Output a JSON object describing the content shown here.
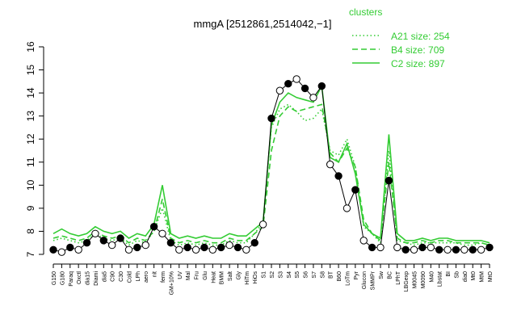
{
  "chart_data": {
    "type": "line",
    "title": "mmgA [2512861,2514042,−1]",
    "xlabel": "",
    "ylabel": "",
    "ylim": [
      7,
      16
    ],
    "yticks": [
      7,
      8,
      9,
      10,
      11,
      12,
      13,
      14,
      15,
      16
    ],
    "grid": false,
    "legend_position": "top-right",
    "legend_title": "clusters",
    "x_tick_labels": [
      "G150",
      "G180",
      "Paraq",
      "Oxctl",
      "dia15",
      "Diami",
      "dia5",
      "C90",
      "C30",
      "Cold",
      "LPh",
      "aero",
      "nit",
      "ferm",
      "GM+10%",
      "UV",
      "Mal",
      "Fru",
      "Glu",
      "Heat",
      "BMM",
      "Salt",
      "Gly",
      "HiTm",
      "HiOs",
      "S1",
      "S2",
      "S3",
      "S4",
      "S5",
      "S6",
      "S7",
      "S8",
      "BT",
      "B60",
      "LoTm",
      "Pyr",
      "Glucon",
      "SMMPr",
      "Sw",
      "BC",
      "LPhT",
      "LBGexp",
      "M0045",
      "M0090",
      "M40",
      "Lbstat",
      "BI",
      "Sb",
      "dia0",
      "Mt0",
      "MtM",
      "MtO"
    ],
    "series": [
      {
        "name": "A21 size: 254",
        "style": "dotted",
        "color": "#33cc33",
        "values": [
          7.6,
          7.7,
          7.6,
          7.5,
          7.6,
          7.9,
          7.7,
          7.6,
          7.7,
          7.4,
          7.6,
          7.5,
          8.0,
          9.0,
          7.6,
          7.4,
          7.5,
          7.4,
          7.5,
          7.4,
          7.4,
          7.6,
          7.5,
          7.5,
          7.9,
          8.4,
          12.5,
          13.3,
          13.5,
          13.2,
          12.8,
          12.9,
          13.3,
          11.5,
          11.3,
          12.0,
          10.8,
          8.2,
          7.9,
          7.5,
          11.5,
          7.6,
          7.5,
          7.4,
          7.5,
          7.5,
          7.5,
          7.5,
          7.5,
          7.4,
          7.4,
          7.5,
          7.4
        ]
      },
      {
        "name": "B4 size: 709",
        "style": "dashed",
        "color": "#33cc33",
        "values": [
          7.7,
          7.8,
          7.7,
          7.6,
          7.7,
          8.0,
          7.8,
          7.7,
          7.8,
          7.5,
          7.7,
          7.6,
          8.0,
          9.4,
          7.7,
          7.5,
          7.6,
          7.5,
          7.6,
          7.5,
          7.5,
          7.7,
          7.6,
          7.6,
          7.9,
          8.2,
          11.5,
          13.0,
          13.4,
          13.2,
          13.3,
          13.4,
          13.5,
          11.4,
          11.0,
          11.6,
          10.8,
          8.5,
          7.9,
          7.6,
          11.0,
          7.7,
          7.5,
          7.5,
          7.6,
          7.5,
          7.6,
          7.6,
          7.5,
          7.5,
          7.5,
          7.5,
          7.4
        ]
      },
      {
        "name": "C2 size: 897",
        "style": "solid",
        "color": "#33cc33",
        "values": [
          7.9,
          8.1,
          7.9,
          7.8,
          7.9,
          8.2,
          8.0,
          7.9,
          8.0,
          7.7,
          7.9,
          7.8,
          8.3,
          10.0,
          7.9,
          7.7,
          7.8,
          7.7,
          7.8,
          7.7,
          7.7,
          7.9,
          7.8,
          7.8,
          8.1,
          8.4,
          12.6,
          13.6,
          14.0,
          13.8,
          13.7,
          13.6,
          14.3,
          11.2,
          11.0,
          11.8,
          10.5,
          8.3,
          7.9,
          7.7,
          12.2,
          7.9,
          7.6,
          7.6,
          7.7,
          7.6,
          7.7,
          7.7,
          7.6,
          7.6,
          7.6,
          7.6,
          7.5
        ]
      },
      {
        "name": "mmgA",
        "style": "points",
        "color": "#000000",
        "values": [
          7.2,
          7.1,
          7.3,
          7.2,
          7.5,
          7.9,
          7.6,
          7.4,
          7.7,
          7.2,
          7.3,
          7.4,
          8.2,
          7.9,
          7.5,
          7.2,
          7.3,
          7.2,
          7.3,
          7.2,
          7.3,
          7.4,
          7.3,
          7.2,
          7.5,
          8.3,
          12.9,
          14.1,
          14.4,
          14.6,
          14.2,
          13.8,
          14.3,
          10.9,
          10.4,
          9.0,
          9.8,
          7.6,
          7.3,
          7.3,
          10.2,
          7.3,
          7.2,
          7.2,
          7.3,
          7.3,
          7.2,
          7.2,
          7.2,
          7.2,
          7.2,
          7.2,
          7.3
        ]
      }
    ]
  }
}
